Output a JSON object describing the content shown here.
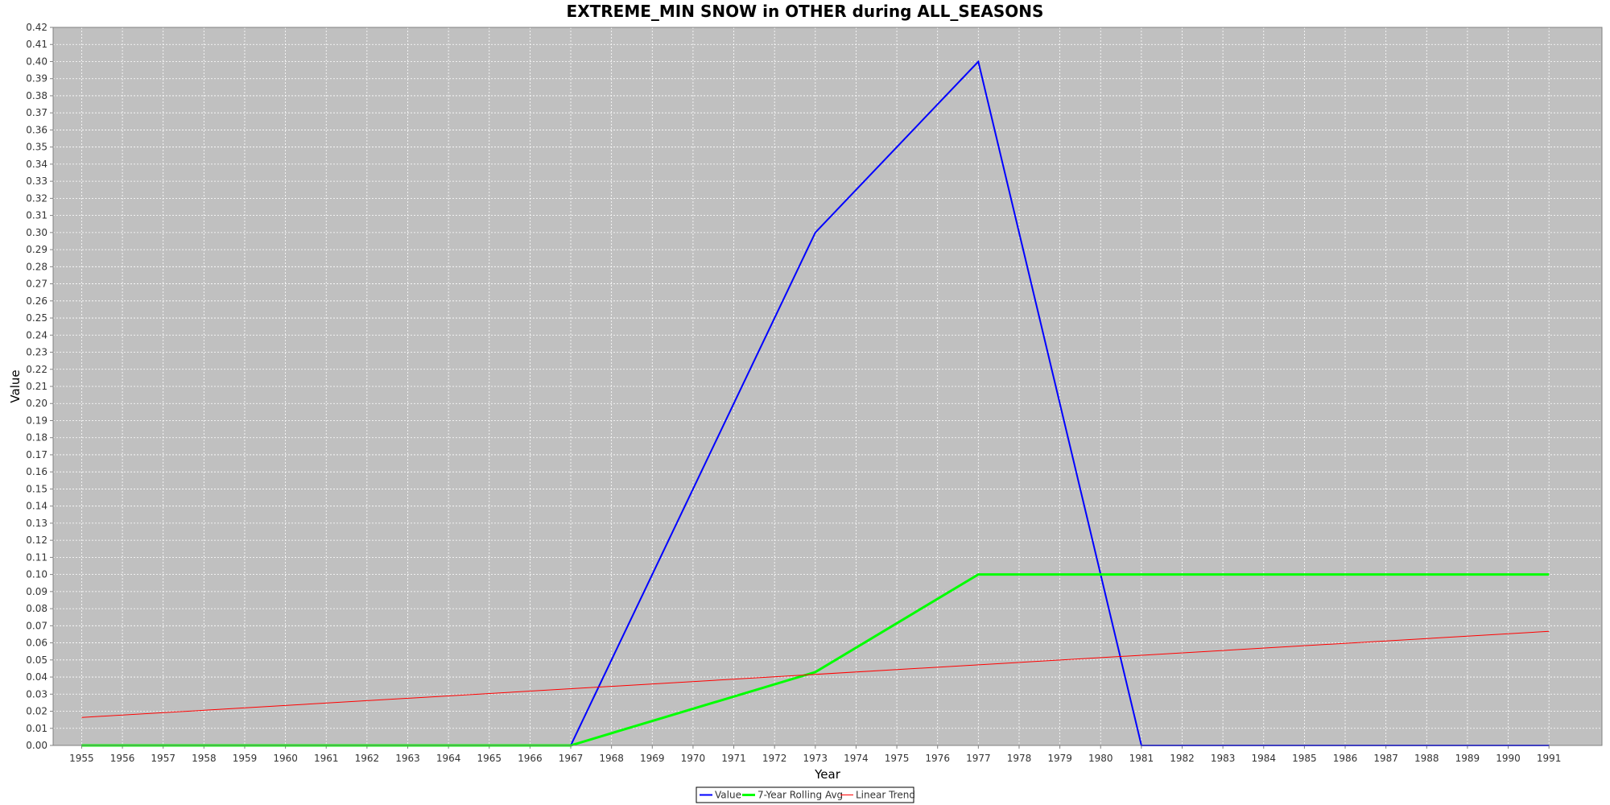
{
  "chart_data": {
    "type": "line",
    "title": "EXTREME_MIN SNOW in OTHER during ALL_SEASONS",
    "xlabel": "Year",
    "ylabel": "Value",
    "x": [
      1955,
      1956,
      1957,
      1958,
      1959,
      1960,
      1961,
      1962,
      1963,
      1964,
      1965,
      1966,
      1967,
      1968,
      1969,
      1970,
      1971,
      1972,
      1973,
      1974,
      1975,
      1976,
      1977,
      1978,
      1979,
      1980,
      1981,
      1982,
      1983,
      1984,
      1985,
      1986,
      1987,
      1988,
      1989,
      1990,
      1991
    ],
    "xlim": [
      1954.3,
      1992.3
    ],
    "ylim": [
      0,
      0.42
    ],
    "ytick_step": 0.01,
    "grid": true,
    "legend_position": "bottom-center",
    "series": [
      {
        "name": "Value",
        "color": "#0000ff",
        "points": [
          [
            1955,
            0.0
          ],
          [
            1967,
            0.0
          ],
          [
            1973,
            0.3
          ],
          [
            1977,
            0.4
          ],
          [
            1981,
            0.0
          ],
          [
            1991,
            0.0
          ]
        ]
      },
      {
        "name": "7-Year Rolling Avg",
        "color": "#00ff00",
        "points": [
          [
            1955,
            0.0
          ],
          [
            1967,
            0.0
          ],
          [
            1973,
            0.0429
          ],
          [
            1977,
            0.1
          ],
          [
            1991,
            0.1
          ]
        ]
      },
      {
        "name": "Linear Trend",
        "color": "#ff0000",
        "points": [
          [
            1955,
            0.0164
          ],
          [
            1991,
            0.0667
          ]
        ]
      }
    ]
  },
  "colors": {
    "plot_background": "#c0c0c0",
    "gridline": "#ffffff"
  }
}
